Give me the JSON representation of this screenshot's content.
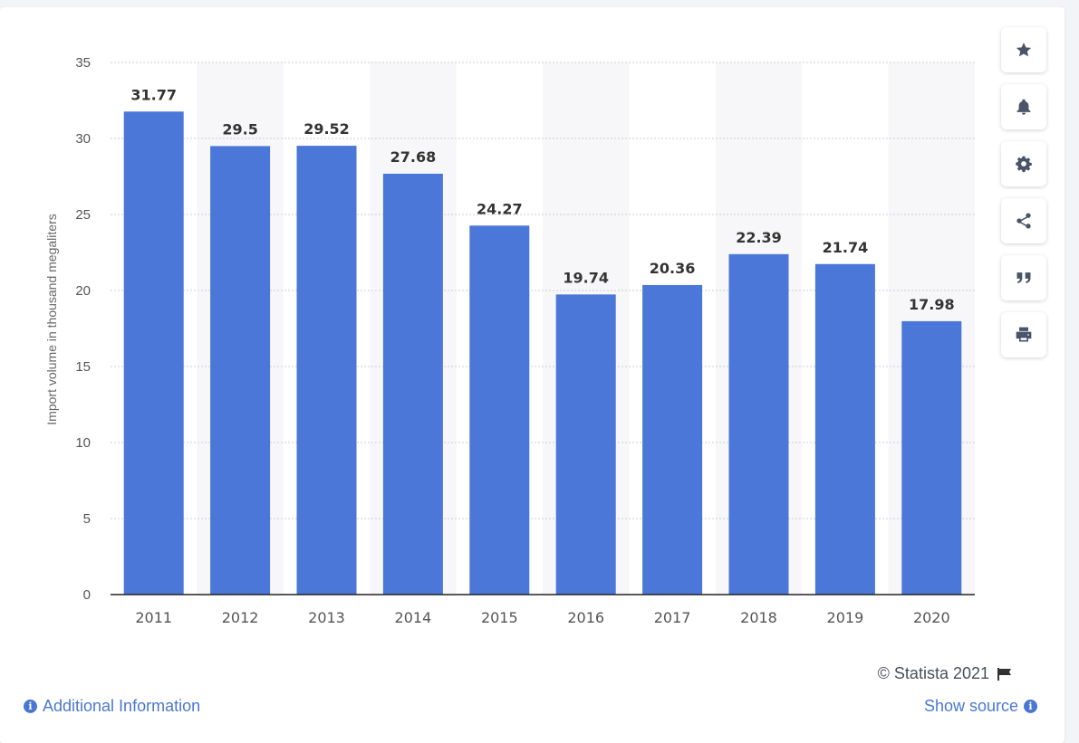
{
  "chart_data": {
    "type": "bar",
    "categories": [
      "2011",
      "2012",
      "2013",
      "2014",
      "2015",
      "2016",
      "2017",
      "2018",
      "2019",
      "2020"
    ],
    "values": [
      31.77,
      29.5,
      29.52,
      27.68,
      24.27,
      19.74,
      20.36,
      22.39,
      21.74,
      17.98
    ],
    "data_labels": [
      "31.77",
      "29.5",
      "29.52",
      "27.68",
      "24.27",
      "19.74",
      "20.36",
      "22.39",
      "21.74",
      "17.98"
    ],
    "ylabel": "Import volume in thousand megaliters",
    "ylim": [
      0,
      35
    ],
    "yticks": [
      0,
      5,
      10,
      15,
      20,
      25,
      30,
      35
    ],
    "grid": true,
    "bar_color": "#4a77d8",
    "alt_band_color": "#f7f7f9"
  },
  "toolbar": {
    "items": [
      {
        "name": "favorite",
        "icon": "star-icon"
      },
      {
        "name": "notification",
        "icon": "bell-icon"
      },
      {
        "name": "settings",
        "icon": "gear-icon"
      },
      {
        "name": "share",
        "icon": "share-icon"
      },
      {
        "name": "cite",
        "icon": "quote-icon"
      },
      {
        "name": "print",
        "icon": "print-icon"
      }
    ]
  },
  "footer": {
    "copyright": "© Statista 2021",
    "additional_info": "Additional Information",
    "show_source": "Show source"
  },
  "colors": {
    "link": "#4a77d3",
    "icon": "#4a5468"
  }
}
